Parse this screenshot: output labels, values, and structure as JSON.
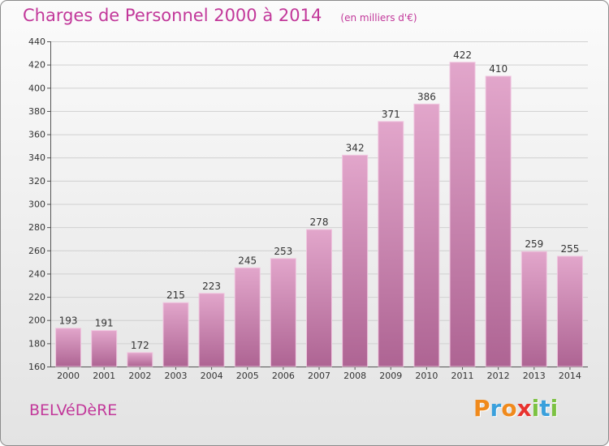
{
  "header": {
    "title": "Charges de Personnel 2000 à 2014",
    "subtitle": "(en milliers d'€)"
  },
  "commune": "BELVéDèRE",
  "logo": {
    "text": "Proxiti",
    "letters": [
      {
        "ch": "P",
        "color": "#f08a1c"
      },
      {
        "ch": "r",
        "color": "#3aa0dc"
      },
      {
        "ch": "o",
        "color": "#f08a1c"
      },
      {
        "ch": "x",
        "color": "#e8322e"
      },
      {
        "ch": "i",
        "color": "#7cc242"
      },
      {
        "ch": "t",
        "color": "#3aa0dc"
      },
      {
        "ch": "i",
        "color": "#7cc242"
      }
    ]
  },
  "colors": {
    "bar_top": "#e2a6cb",
    "bar_bottom": "#ae6493",
    "bar_edge": "#f0c7e0",
    "grid": "#d0d0d0",
    "accent": "#c2389a"
  },
  "chart_data": {
    "type": "bar",
    "title": "Charges de Personnel 2000 à 2014",
    "subtitle": "(en milliers d'€)",
    "categories": [
      "2000",
      "2001",
      "2002",
      "2003",
      "2004",
      "2005",
      "2006",
      "2007",
      "2008",
      "2009",
      "2010",
      "2011",
      "2012",
      "2013",
      "2014"
    ],
    "values": [
      193,
      191,
      172,
      215,
      223,
      245,
      253,
      278,
      342,
      371,
      386,
      422,
      410,
      259,
      255
    ],
    "ylim": [
      160,
      440
    ],
    "yticks": [
      160,
      180,
      200,
      220,
      240,
      260,
      280,
      300,
      320,
      340,
      360,
      380,
      400,
      420,
      440
    ],
    "grid": true,
    "data_labels": true
  }
}
